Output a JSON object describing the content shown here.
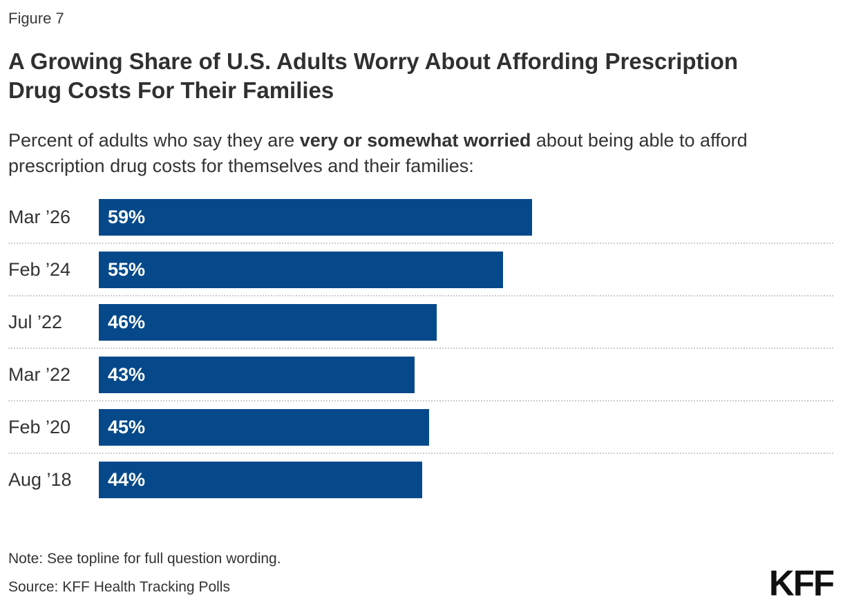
{
  "figure_label": "Figure 7",
  "title": "A Growing Share of U.S. Adults Worry About Affording Prescription Drug Costs For Their Families",
  "subtitle": {
    "prefix": "Percent of adults who say they are ",
    "bold": "very or somewhat worried",
    "suffix": " about being able to afford prescription drug costs for themselves and their families:"
  },
  "chart_data": {
    "type": "bar",
    "orientation": "horizontal",
    "categories": [
      "Mar ’26",
      "Feb ’24",
      "Jul ’22",
      "Mar ’22",
      "Feb ’20",
      "Aug ’18"
    ],
    "values": [
      59,
      55,
      46,
      43,
      45,
      44
    ],
    "value_labels": [
      "59%",
      "55%",
      "46%",
      "43%",
      "45%",
      "44%"
    ],
    "xlim": [
      0,
      100
    ],
    "xlabel": "",
    "ylabel": "",
    "legend": "none",
    "grid": "dotted horizontal separators between rows",
    "bar_color": "#05498a",
    "value_label_color": "#ffffff",
    "value_label_position": "inside-left"
  },
  "footer": {
    "note": "Note: See topline for full question wording.",
    "source": "Source: KFF Health Tracking Polls",
    "logo_text": "KFF"
  },
  "colors": {
    "bar": "#05498a",
    "text": "#333333",
    "title_text": "#303030",
    "separator": "#cccccc",
    "background": "#ffffff",
    "logo": "#101010"
  }
}
